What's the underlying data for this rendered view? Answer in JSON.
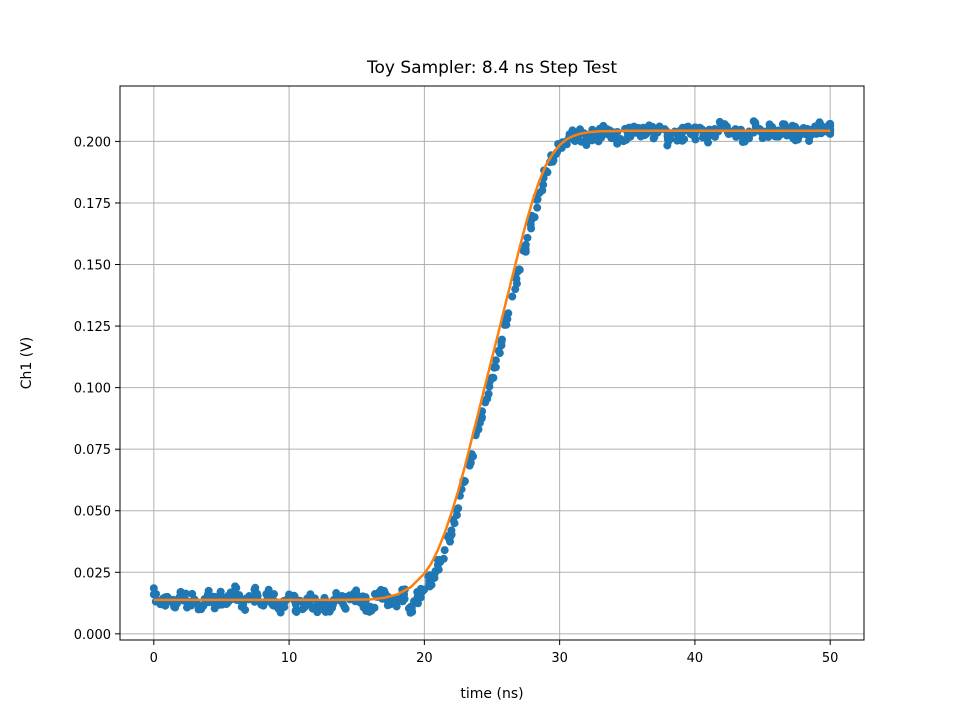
{
  "chart_data": {
    "type": "scatter",
    "title": "Toy Sampler: 8.4 ns Step Test",
    "xlabel": "time (ns)",
    "ylabel": "Ch1 (V)",
    "xlim": [
      -2.5,
      52.5
    ],
    "ylim": [
      -0.0025,
      0.2225
    ],
    "xticks": [
      0,
      10,
      20,
      30,
      40,
      50
    ],
    "xtick_labels": [
      "0",
      "10",
      "20",
      "30",
      "40",
      "50"
    ],
    "yticks": [
      0.0,
      0.025,
      0.05,
      0.075,
      0.1,
      0.125,
      0.15,
      0.175,
      0.2
    ],
    "ytick_labels": [
      "0.000",
      "0.025",
      "0.050",
      "0.075",
      "0.100",
      "0.125",
      "0.150",
      "0.175",
      "0.200"
    ],
    "grid": true,
    "series": [
      {
        "kind": "scatter",
        "color": "#1f77b4",
        "x": [
          0,
          0.5,
          1,
          1.5,
          2,
          2.5,
          3,
          3.5,
          4,
          4.5,
          5,
          5.5,
          6,
          6.5,
          7,
          7.5,
          8,
          8.5,
          9,
          9.5,
          10,
          10.5,
          11,
          11.5,
          12,
          12.5,
          13,
          13.5,
          14,
          14.5,
          15,
          15.5,
          16,
          16.5,
          17,
          17.5,
          18,
          18.5,
          19,
          19.5,
          20,
          20.5,
          21,
          21.5,
          22,
          22.5,
          23,
          23.5,
          24,
          24.5,
          25,
          25.5,
          26,
          26.5,
          27,
          27.5,
          28,
          28.5,
          29,
          29.5,
          30,
          30.5,
          31,
          31.5,
          32,
          32.5,
          33,
          33.5,
          34,
          34.5,
          35,
          35.5,
          36,
          36.5,
          37,
          37.5,
          38,
          38.5,
          39,
          39.5,
          40,
          40.5,
          41,
          41.5,
          42,
          42.5,
          43,
          43.5,
          44,
          44.5,
          45,
          45.5,
          46,
          46.5,
          47,
          47.5,
          48,
          48.5,
          49,
          49.5,
          50
        ],
        "y": [
          0.016,
          0.012,
          0.015,
          0.011,
          0.017,
          0.013,
          0.014,
          0.01,
          0.016,
          0.012,
          0.015,
          0.013,
          0.017,
          0.011,
          0.014,
          0.016,
          0.012,
          0.015,
          0.013,
          0.011,
          0.016,
          0.012,
          0.01,
          0.014,
          0.011,
          0.013,
          0.009,
          0.015,
          0.012,
          0.014,
          0.016,
          0.013,
          0.011,
          0.015,
          0.017,
          0.012,
          0.014,
          0.016,
          0.011,
          0.015,
          0.018,
          0.022,
          0.028,
          0.034,
          0.042,
          0.051,
          0.062,
          0.073,
          0.083,
          0.094,
          0.104,
          0.115,
          0.126,
          0.137,
          0.148,
          0.158,
          0.169,
          0.179,
          0.188,
          0.193,
          0.198,
          0.2,
          0.202,
          0.203,
          0.201,
          0.204,
          0.202,
          0.205,
          0.203,
          0.201,
          0.204,
          0.206,
          0.202,
          0.204,
          0.203,
          0.205,
          0.201,
          0.204,
          0.202,
          0.206,
          0.203,
          0.205,
          0.202,
          0.204,
          0.207,
          0.203,
          0.205,
          0.202,
          0.204,
          0.206,
          0.203,
          0.205,
          0.202,
          0.207,
          0.204,
          0.203,
          0.205,
          0.202,
          0.206,
          0.204,
          0.205
        ]
      },
      {
        "kind": "line",
        "color": "#ff7f0e",
        "x": [
          0,
          2,
          4,
          6,
          8,
          10,
          12,
          14,
          16,
          17,
          18,
          19,
          20,
          20.5,
          21,
          21.5,
          22,
          22.5,
          23,
          23.5,
          24,
          24.5,
          25,
          25.5,
          26,
          26.5,
          27,
          27.5,
          28,
          28.5,
          29,
          29.5,
          30,
          30.5,
          31,
          31.5,
          32,
          32.5,
          33,
          34,
          35,
          36,
          38,
          40,
          42,
          44,
          46,
          48,
          50
        ],
        "y": [
          0.0138,
          0.0138,
          0.0138,
          0.0138,
          0.0138,
          0.0138,
          0.0138,
          0.0138,
          0.014,
          0.0146,
          0.016,
          0.019,
          0.0245,
          0.0285,
          0.034,
          0.041,
          0.049,
          0.058,
          0.068,
          0.079,
          0.09,
          0.101,
          0.112,
          0.123,
          0.134,
          0.145,
          0.156,
          0.1665,
          0.176,
          0.184,
          0.1905,
          0.195,
          0.1985,
          0.2008,
          0.2022,
          0.2031,
          0.2036,
          0.2039,
          0.2041,
          0.2042,
          0.2043,
          0.2043,
          0.2043,
          0.2043,
          0.2043,
          0.2043,
          0.2043,
          0.2043,
          0.2043
        ]
      }
    ]
  }
}
